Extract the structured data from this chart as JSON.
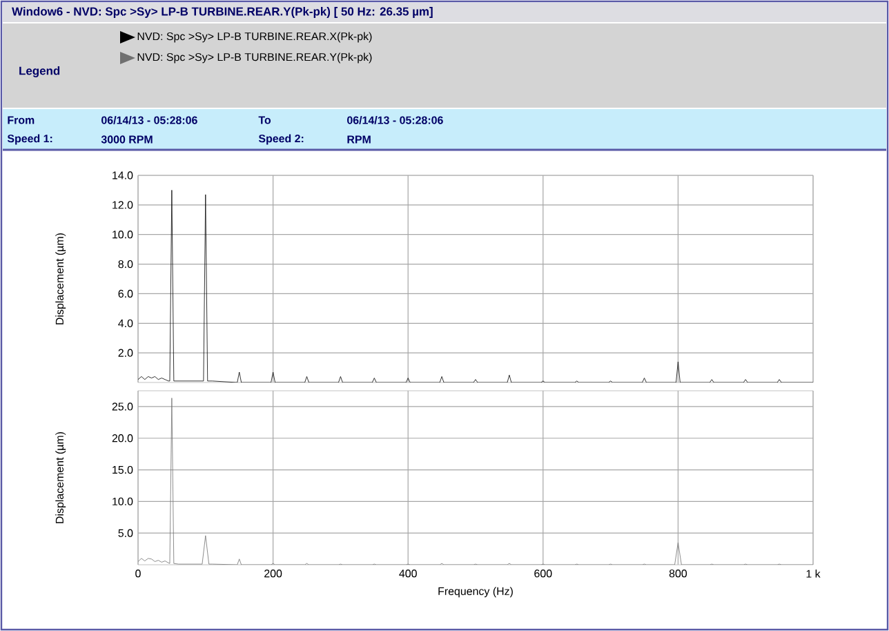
{
  "chart_data": [
    {
      "type": "other",
      "title": "Window6 - NVD: Spc >Sy> LP-B TURBINE.REAR.Y(Pk-pk) [ 50 Hz:  26.35 µm]",
      "annotations": [
        "From",
        "06/14/13 - 05:28:06",
        "To",
        "06/14/13 - 05:28:06",
        "Speed 1:",
        "3000 RPM",
        "Speed 2:",
        "RPM"
      ]
    },
    {
      "type": "line",
      "legend_title": "Legend",
      "legend": "top",
      "ylabel": "Displacement (µm)",
      "grid": true,
      "tick_labels": "y",
      "xlim": [
        0,
        1000
      ],
      "ylim": [
        0,
        14
      ],
      "xticks": [
        0,
        200,
        400,
        600,
        800,
        1000
      ],
      "yticks": [
        {
          "value": 2,
          "label": "2.0"
        },
        {
          "value": 4,
          "label": "4.0"
        },
        {
          "value": 6,
          "label": "6.0"
        },
        {
          "value": 8,
          "label": "8.0"
        },
        {
          "value": 10,
          "label": "10.0"
        },
        {
          "value": 12,
          "label": "12.0"
        },
        {
          "value": 14,
          "label": "14.0"
        }
      ],
      "series": [
        {
          "name": "NVD: Spc >Sy> LP-B TURBINE.REAR.X(Pk-pk)",
          "color": "#000000",
          "x": [
            0,
            5,
            10,
            15,
            20,
            25,
            30,
            35,
            40,
            45,
            47,
            50,
            53,
            60,
            70,
            80,
            90,
            97,
            100,
            103,
            110,
            147,
            150,
            153,
            197,
            200,
            203,
            247,
            250,
            253,
            297,
            300,
            303,
            347,
            350,
            353,
            397,
            400,
            403,
            447,
            450,
            453,
            497,
            500,
            503,
            547,
            550,
            553,
            597,
            600,
            603,
            647,
            650,
            653,
            697,
            700,
            703,
            747,
            750,
            753,
            797,
            800,
            803,
            847,
            850,
            853,
            897,
            900,
            903,
            947,
            950,
            953,
            1000
          ],
          "values": [
            0.2,
            0.4,
            0.2,
            0.4,
            0.3,
            0.4,
            0.2,
            0.3,
            0.2,
            0.1,
            0.1,
            13.0,
            0.1,
            0.1,
            0.1,
            0.1,
            0.1,
            0.1,
            12.7,
            0.1,
            0.1,
            0,
            0.7,
            0,
            0,
            0.7,
            0,
            0,
            0.4,
            0,
            0,
            0.4,
            0,
            0,
            0.3,
            0,
            0,
            0.3,
            0,
            0,
            0.4,
            0,
            0,
            0.2,
            0,
            0,
            0.5,
            0,
            0,
            0.1,
            0,
            0,
            0.1,
            0,
            0,
            0.1,
            0,
            0,
            0.3,
            0,
            0,
            1.4,
            0,
            0,
            0.2,
            0,
            0,
            0.2,
            0,
            0,
            0.2,
            0,
            0
          ]
        }
      ]
    },
    {
      "type": "line",
      "legend": "top",
      "xlabel": "Frequency (Hz)",
      "ylabel": "Displacement (µm)",
      "grid": true,
      "xlim": [
        0,
        1000
      ],
      "ylim": [
        0,
        27.5
      ],
      "xticks": [
        0,
        200,
        400,
        600,
        800,
        {
          "value": 1000,
          "label": "1 k"
        }
      ],
      "yticks": [
        {
          "value": 5,
          "label": "5.0"
        },
        {
          "value": 10,
          "label": "10.0"
        },
        {
          "value": 15,
          "label": "15.0"
        },
        {
          "value": 20,
          "label": "20.0"
        },
        {
          "value": 25,
          "label": "25.0"
        }
      ],
      "series": [
        {
          "name": "NVD: Spc >Sy> LP-B TURBINE.REAR.Y(Pk-pk)",
          "color": "#707070",
          "x": [
            0,
            5,
            10,
            15,
            20,
            25,
            30,
            35,
            40,
            45,
            47,
            50,
            53,
            60,
            70,
            80,
            90,
            95,
            100,
            105,
            110,
            147,
            150,
            153,
            197,
            200,
            203,
            247,
            250,
            253,
            297,
            300,
            303,
            347,
            350,
            353,
            397,
            400,
            403,
            447,
            450,
            453,
            497,
            500,
            503,
            547,
            550,
            553,
            597,
            600,
            603,
            647,
            650,
            653,
            697,
            700,
            703,
            747,
            750,
            753,
            795,
            800,
            805,
            847,
            850,
            853,
            897,
            900,
            903,
            947,
            950,
            953,
            1000
          ],
          "values": [
            0.5,
            1.0,
            0.6,
            1.0,
            0.9,
            0.5,
            0.7,
            0.4,
            0.6,
            0.3,
            0.2,
            26.35,
            0.2,
            0.1,
            0.1,
            0.1,
            0.1,
            0.1,
            4.6,
            0.1,
            0.1,
            0,
            0.9,
            0,
            0,
            0.2,
            0,
            0,
            0.2,
            0,
            0,
            0.1,
            0,
            0,
            0.1,
            0,
            0,
            0.1,
            0,
            0,
            0.2,
            0,
            0,
            0.1,
            0,
            0,
            0.2,
            0,
            0,
            0.1,
            0,
            0,
            0.1,
            0,
            0,
            0.1,
            0,
            0,
            0.1,
            0,
            0,
            3.5,
            0,
            0,
            0.1,
            0,
            0,
            0.1,
            0,
            0,
            0.1,
            0,
            0
          ]
        }
      ]
    }
  ]
}
